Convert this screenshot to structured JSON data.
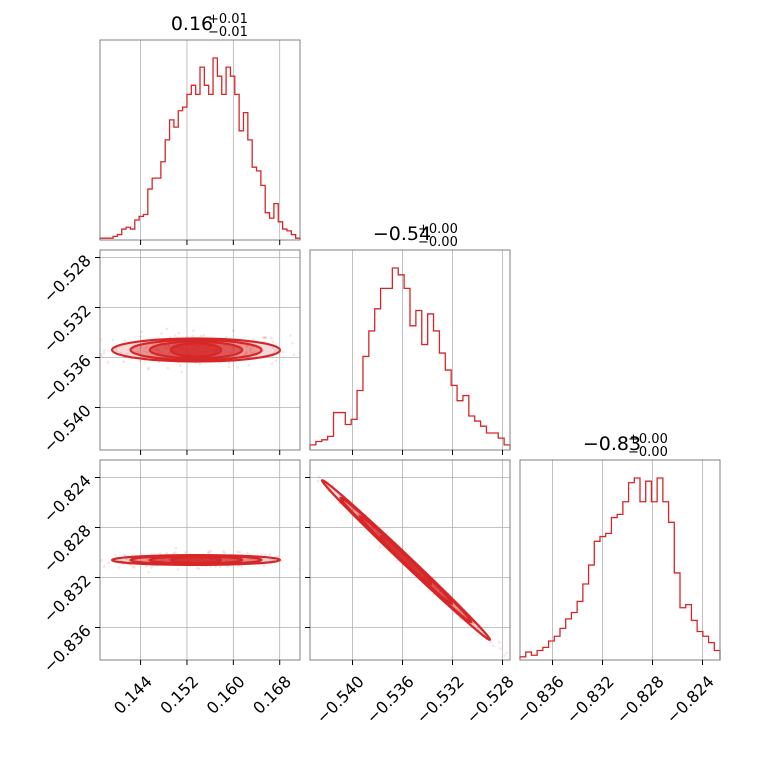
{
  "chart_data": {
    "type": "corner",
    "color": "#d62728",
    "parameters": [
      {
        "median": 0.16,
        "title_value": "0.16",
        "err_plus": "+0.01",
        "err_minus": "−0.01",
        "range": [
          0.137,
          0.1715
        ],
        "ticks": [
          0.144,
          0.152,
          0.16,
          0.168
        ],
        "tick_labels": [
          "0.144",
          "0.152",
          "0.160",
          "0.168"
        ]
      },
      {
        "median": -0.54,
        "title_value": "−0.54",
        "err_plus": "+0.00",
        "err_minus": "−0.00",
        "range": [
          -0.5434,
          -0.5274
        ],
        "ticks": [
          -0.54,
          -0.536,
          -0.532,
          -0.528
        ],
        "tick_labels": [
          "−0.540",
          "−0.536",
          "−0.532",
          "−0.528"
        ]
      },
      {
        "median": -0.83,
        "title_value": "−0.83",
        "err_plus": "+0.00",
        "err_minus": "−0.00",
        "range": [
          -0.8386,
          -0.8226
        ],
        "ticks": [
          -0.836,
          -0.832,
          -0.828,
          -0.824
        ],
        "tick_labels": [
          "−0.836",
          "−0.832",
          "−0.828",
          "−0.824"
        ]
      }
    ],
    "histograms": [
      [
        1,
        1,
        1,
        2,
        3,
        6,
        7,
        6,
        11,
        13,
        14,
        28,
        34,
        34,
        43,
        55,
        66,
        62,
        71,
        73,
        80,
        85,
        80,
        95,
        85,
        80,
        100,
        90,
        80,
        95,
        90,
        80,
        60,
        70,
        55,
        40,
        38,
        30,
        15,
        12,
        20,
        10,
        6,
        5,
        3,
        1
      ],
      [
        3,
        5,
        6,
        8,
        22,
        22,
        15,
        18,
        35,
        55,
        70,
        83,
        95,
        95,
        107,
        103,
        95,
        73,
        82,
        62,
        80,
        70,
        57,
        47,
        38,
        29,
        32,
        20,
        17,
        14,
        10,
        10,
        7,
        3
      ],
      [
        2,
        5,
        3,
        6,
        8,
        12,
        15,
        20,
        26,
        30,
        37,
        48,
        60,
        75,
        78,
        80,
        90,
        92,
        100,
        112,
        115,
        100,
        113,
        100,
        115,
        100,
        87,
        55,
        33,
        35,
        25,
        18,
        15,
        11,
        6
      ]
    ],
    "correlations": [
      {
        "pair": [
          0,
          1
        ],
        "slope": -0.0005,
        "sigma_perp": 0.00042
      },
      {
        "pair": [
          0,
          2
        ],
        "slope": 0.000475,
        "sigma_perp": 0.00018
      },
      {
        "pair": [
          1,
          2
        ],
        "slope": -0.95,
        "sigma_perp": 0.00016
      }
    ],
    "grid": true
  }
}
